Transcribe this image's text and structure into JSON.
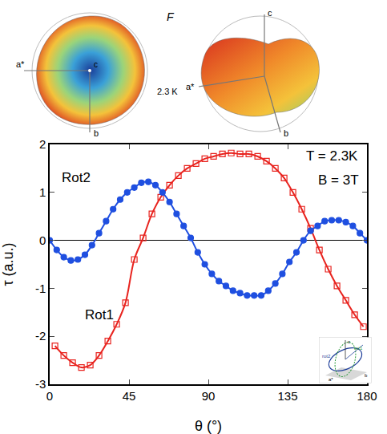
{
  "chart_data": {
    "type": "scatter",
    "x_label": "θ (°)",
    "y_label": "τ (a.u.)",
    "xlim": [
      0,
      180
    ],
    "xticks": [
      0,
      45,
      90,
      135,
      180
    ],
    "ylim": [
      -3,
      2
    ],
    "yticks": [
      -3,
      -2,
      -1,
      0,
      1,
      2
    ],
    "grid": false,
    "series": [
      {
        "name": "Rot1",
        "color": "#e8231e",
        "marker": "square-open",
        "line_style": "solid",
        "x": [
          3,
          8,
          13,
          18,
          23,
          28,
          33,
          38,
          43,
          48,
          53,
          58,
          63,
          68,
          73,
          78,
          83,
          88,
          93,
          98,
          103,
          108,
          113,
          118,
          123,
          128,
          133,
          138,
          143,
          148,
          153,
          158,
          163,
          168,
          173,
          178
        ],
        "values": [
          -2.2,
          -2.4,
          -2.55,
          -2.65,
          -2.6,
          -2.4,
          -2.1,
          -1.75,
          -1.3,
          -0.4,
          0.05,
          0.55,
          0.9,
          1.15,
          1.35,
          1.5,
          1.6,
          1.7,
          1.75,
          1.8,
          1.82,
          1.8,
          1.8,
          1.75,
          1.65,
          1.5,
          1.3,
          1.0,
          0.65,
          0.25,
          -0.2,
          -0.6,
          -0.95,
          -1.25,
          -1.55,
          -1.8
        ]
      },
      {
        "name": "Rot2",
        "color": "#1f4fe0",
        "marker": "circle",
        "line_style": "solid",
        "x": [
          0,
          4,
          8,
          12,
          16,
          20,
          24,
          28,
          32,
          36,
          40,
          44,
          48,
          52,
          56,
          60,
          64,
          68,
          72,
          76,
          80,
          84,
          88,
          92,
          96,
          100,
          104,
          108,
          112,
          116,
          120,
          124,
          128,
          132,
          136,
          140,
          144,
          148,
          152,
          156,
          160,
          164,
          168,
          172,
          176,
          180
        ],
        "values": [
          0,
          -0.2,
          -0.35,
          -0.42,
          -0.4,
          -0.3,
          -0.1,
          0.15,
          0.4,
          0.65,
          0.85,
          1.0,
          1.1,
          1.2,
          1.22,
          1.15,
          1.0,
          0.8,
          0.55,
          0.3,
          0.05,
          -0.25,
          -0.5,
          -0.7,
          -0.85,
          -0.95,
          -1.05,
          -1.1,
          -1.15,
          -1.15,
          -1.15,
          -1.05,
          -0.9,
          -0.7,
          -0.45,
          -0.25,
          0.0,
          0.2,
          0.3,
          0.4,
          0.42,
          0.42,
          0.38,
          0.3,
          0.15,
          0.0
        ]
      }
    ],
    "annotations": [
      {
        "text": "Rot1",
        "x": 28,
        "y": -1.55
      },
      {
        "text": "Rot2",
        "x": 15,
        "y": 1.3
      },
      {
        "text": "T = 2.3K",
        "x": 160,
        "y": 1.75
      },
      {
        "text": "B = 3T",
        "x": 164,
        "y": 1.25
      }
    ]
  },
  "illustration": {
    "label": "F",
    "temperature": "2.3 K",
    "axes": [
      "a*",
      "b",
      "c"
    ]
  },
  "inset": {
    "curves": [
      "rot1",
      "rot2"
    ],
    "axes": [
      "a*",
      "b",
      "c"
    ]
  }
}
